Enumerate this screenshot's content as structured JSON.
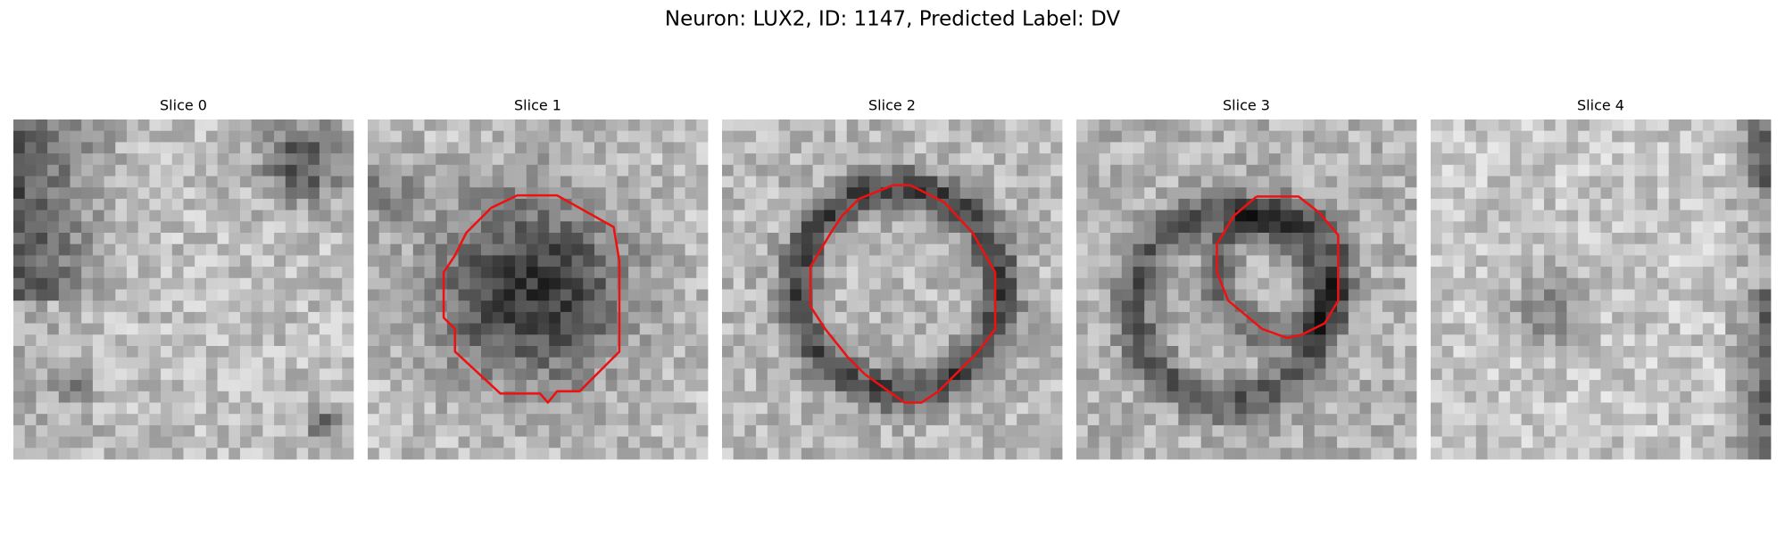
{
  "title": "Neuron: LUX2, ID: 1147, Predicted Label: DV",
  "panels": [
    {
      "title": "Slice 0"
    },
    {
      "title": "Slice 1"
    },
    {
      "title": "Slice 2"
    },
    {
      "title": "Slice 3"
    },
    {
      "title": "Slice 4"
    }
  ]
}
